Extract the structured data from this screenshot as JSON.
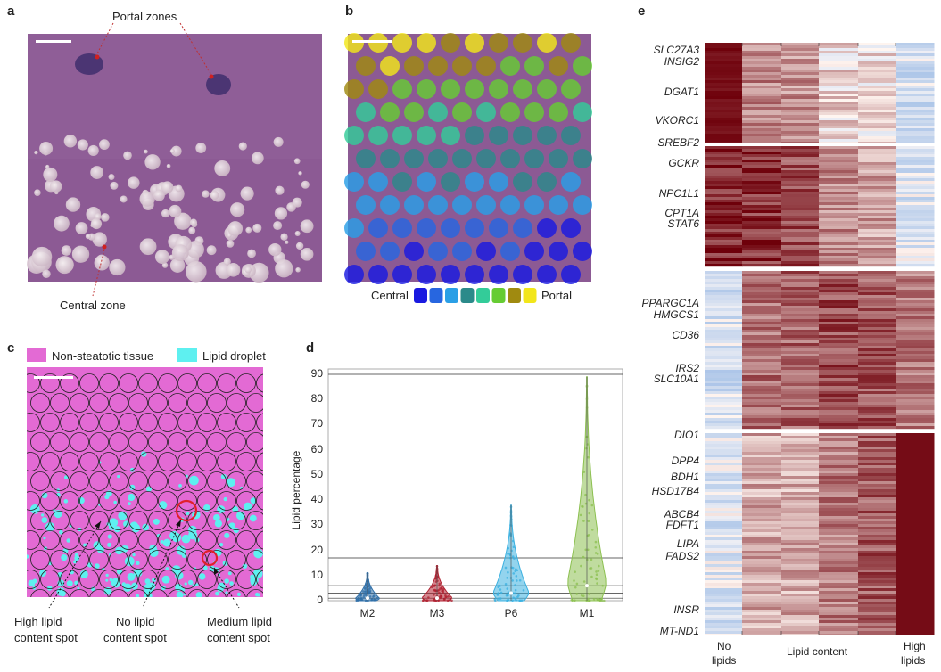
{
  "panels": {
    "a": {
      "label": "a",
      "portal_label": "Portal zones",
      "central_label": "Central zone"
    },
    "b": {
      "label": "b",
      "legend_left": "Central",
      "legend_right": "Portal",
      "zone_colors": [
        "#1a1ae0",
        "#2766e0",
        "#2a9fe6",
        "#2b8a8a",
        "#33cc99",
        "#66cc33",
        "#a08a10",
        "#f2e61a"
      ]
    },
    "c": {
      "label": "c",
      "legend_tissue": "Non-steatotic tissue",
      "legend_lipid": "Lipid droplet",
      "tissue_color": "#e36ad4",
      "lipid_color": "#5ef0f0",
      "callouts": {
        "high": [
          "High lipid",
          "content spot"
        ],
        "none": [
          "No lipid",
          "content spot"
        ],
        "medium": [
          "Medium lipid",
          "content spot"
        ]
      }
    },
    "d": {
      "label": "d"
    },
    "e": {
      "label": "e",
      "xlabel_left": [
        "No",
        "lipids"
      ],
      "xlabel_mid": "Lipid content",
      "xlabel_right": [
        "High",
        "lipids"
      ],
      "genes": [
        "SLC27A3",
        "INSIG2",
        "DGAT1",
        "VKORC1",
        "SREBF2",
        "GCKR",
        "NPC1L1",
        "CPT1A",
        "STAT6",
        "PPARGC1A",
        "HMGCS1",
        "CD36",
        "IRS2",
        "SLC10A1",
        "DIO1",
        "DPP4",
        "BDH1",
        "HSD17B4",
        "ABCB4",
        "FDFT1",
        "LIPA",
        "FADS2",
        "INSR",
        "MT-ND1"
      ]
    }
  },
  "chart_data": {
    "type": "violin",
    "ylabel": "Lipid percentage",
    "xlabel": "",
    "categories": [
      "M2",
      "M3",
      "P6",
      "M1"
    ],
    "ylim": [
      0,
      90
    ],
    "yticks": [
      0,
      10,
      20,
      30,
      40,
      50,
      60,
      70,
      80,
      90
    ],
    "colors": [
      "#2f6fa8",
      "#b02030",
      "#3ab0e0",
      "#8cc050"
    ],
    "max_values": [
      11,
      14,
      38,
      89
    ],
    "median_values": [
      1,
      1,
      3,
      6
    ],
    "reference_lines": [
      90,
      17,
      6,
      3,
      1
    ]
  }
}
